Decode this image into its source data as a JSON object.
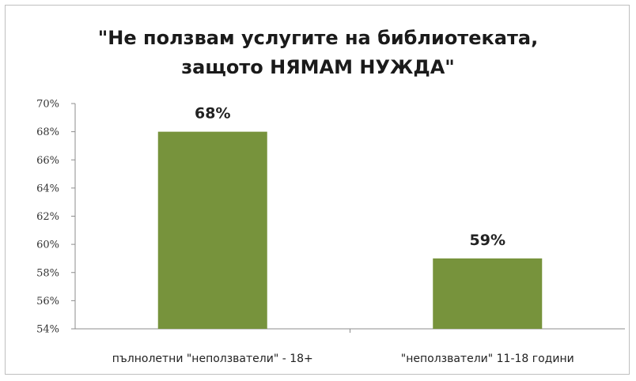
{
  "chart_data": {
    "type": "bar",
    "title_lines": [
      "\"Не ползвам услугите на библиотеката,",
      "защото НЯМАМ НУЖДА\""
    ],
    "categories": [
      "пълнолетни \"неползватели\" - 18+",
      "\"неползватели\" 11-18 години"
    ],
    "values": [
      68,
      59
    ],
    "value_labels": [
      "68%",
      "59%"
    ],
    "ylim": [
      54,
      70
    ],
    "yticks": [
      54,
      56,
      58,
      60,
      62,
      64,
      66,
      68,
      70
    ],
    "ytick_labels": [
      "54%",
      "56%",
      "58%",
      "60%",
      "62%",
      "64%",
      "66%",
      "68%",
      "70%"
    ],
    "xlabel": "",
    "ylabel": "",
    "grid": false,
    "legend": "none",
    "bar_color": "#77933c"
  }
}
